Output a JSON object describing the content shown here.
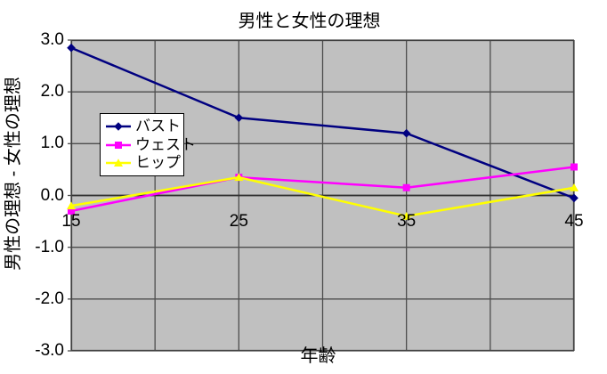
{
  "chart_data": {
    "type": "line",
    "title": "男性と女性の理想",
    "xlabel": "年齢",
    "ylabel": "男性の理想 - 女性の理想",
    "x": [
      15,
      25,
      35,
      45
    ],
    "series": [
      {
        "name": "バスト",
        "marker": "diamond",
        "color": "#000080",
        "values": [
          2.85,
          1.5,
          1.2,
          -0.05
        ]
      },
      {
        "name": "ウェスト",
        "marker": "square",
        "color": "#FF00FF",
        "values": [
          -0.3,
          0.35,
          0.15,
          0.55
        ]
      },
      {
        "name": "ヒップ",
        "marker": "triangle",
        "color": "#FFFF00",
        "values": [
          -0.2,
          0.35,
          -0.4,
          0.15
        ]
      }
    ],
    "xlim": [
      15,
      45
    ],
    "ylim": [
      -3.0,
      3.0
    ],
    "x_grid_step": 5,
    "y_grid_step": 1,
    "x_tick_labels": [
      {
        "value": 15,
        "label": "15"
      },
      {
        "value": 25,
        "label": "25"
      },
      {
        "value": 35,
        "label": "35"
      },
      {
        "value": 45,
        "label": "45"
      }
    ],
    "y_tick_labels": [
      {
        "value": 3,
        "label": "3.0"
      },
      {
        "value": 2,
        "label": "2.0"
      },
      {
        "value": 1,
        "label": "1.0"
      },
      {
        "value": 0,
        "label": "0.0"
      },
      {
        "value": -1,
        "label": "-1.0"
      },
      {
        "value": -2,
        "label": "-2.0"
      },
      {
        "value": -3,
        "label": "-3.0"
      }
    ],
    "grid": true,
    "legend_position": "inside-left",
    "colors": {
      "canvas_background": "#FFFFFF",
      "plot_background": "#C0C0C0",
      "gridline": "#4D4D4D",
      "plot_border": "#404040",
      "zero_axis": "#303030",
      "text": "#000000",
      "legend_background": "#FFFFFF",
      "legend_border": "#000000"
    }
  }
}
